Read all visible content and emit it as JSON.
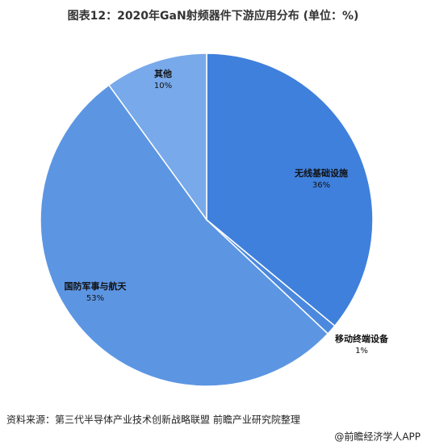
{
  "chart_data": {
    "type": "pie",
    "title": "图表12：2020年GaN射频器件下游应用分布 (单位：%)",
    "categories": [
      "无线基础设施",
      "移动终端设备",
      "国防军事与航天",
      "其他"
    ],
    "values": [
      36,
      1,
      53,
      10
    ],
    "value_labels": [
      "36%",
      "1%",
      "53%",
      "10%"
    ],
    "colors": [
      "#3f80dc",
      "#4b89df",
      "#5c96e3",
      "#78a9ea"
    ],
    "source": "资料来源：第三代半导体产业技术创新战略联盟 前瞻产业研究院整理",
    "credit": "@前瞻经济学人APP"
  }
}
